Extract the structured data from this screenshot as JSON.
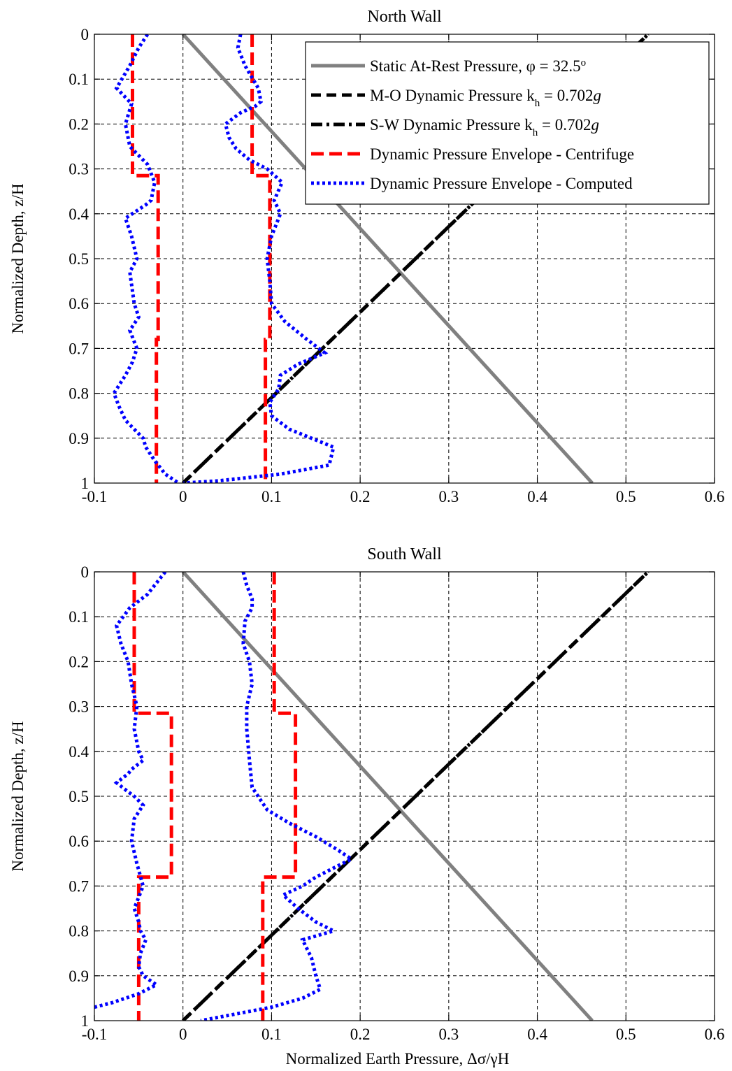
{
  "chart_data": [
    {
      "type": "line",
      "title": "North Wall",
      "xlabel": "",
      "ylabel": "Normalized Depth, z/H",
      "xlim": [
        -0.1,
        0.6
      ],
      "ylim": [
        0,
        1
      ],
      "y_reversed": true,
      "grid": true,
      "legend_position": "top-right",
      "xticks": [
        -0.1,
        0,
        0.1,
        0.2,
        0.3,
        0.4,
        0.5,
        0.6
      ],
      "xtick_labels": [
        "-0.1",
        "0",
        "0.1",
        "0.2",
        "0.3",
        "0.4",
        "0.5",
        "0.6"
      ],
      "yticks": [
        0,
        0.1,
        0.2,
        0.3,
        0.4,
        0.5,
        0.6,
        0.7,
        0.8,
        0.9,
        1
      ],
      "ytick_labels": [
        "0",
        "0.1",
        "0.2",
        "0.3",
        "0.4",
        "0.5",
        "0.6",
        "0.7",
        "0.8",
        "0.9",
        "1"
      ],
      "legend": [
        {
          "prefix": "Static At-Rest Pressure, ",
          "sym": "φ",
          "mid": " = 32.5",
          "sup": "o",
          "sub": "",
          "end": "",
          "italic": "",
          "style": "static"
        },
        {
          "prefix": "M-O Dynamic Pressure k",
          "sym": "",
          "mid": "",
          "sup": "",
          "sub": "h",
          "end": " = 0.702",
          "italic": "g",
          "style": "mo"
        },
        {
          "prefix": "S-W Dynamic Pressure k",
          "sym": "",
          "mid": "",
          "sup": "",
          "sub": "h",
          "end": " = 0.702",
          "italic": "g",
          "style": "sw"
        },
        {
          "prefix": "Dynamic Pressure Envelope - Centrifuge",
          "sym": "",
          "mid": "",
          "sup": "",
          "sub": "",
          "end": "",
          "italic": "",
          "style": "cent"
        },
        {
          "prefix": "Dynamic Pressure Envelope - Computed",
          "sym": "",
          "mid": "",
          "sup": "",
          "sub": "",
          "end": "",
          "italic": "",
          "style": "comp"
        }
      ],
      "series": [
        {
          "style": "static",
          "x": [
            0,
            0.462
          ],
          "y": [
            0,
            1
          ]
        },
        {
          "style": "mo",
          "x": [
            0,
            0.525
          ],
          "y": [
            1,
            0
          ]
        },
        {
          "style": "sw",
          "x": [
            0,
            0.525
          ],
          "y": [
            1,
            0
          ]
        },
        {
          "style": "cent",
          "x": [
            -0.057,
            -0.057,
            -0.028,
            -0.028,
            -0.03,
            -0.03
          ],
          "y": [
            0,
            0.315,
            0.315,
            0.68,
            0.68,
            1
          ]
        },
        {
          "style": "cent",
          "x": [
            0.078,
            0.078,
            0.098,
            0.098,
            0.093,
            0.093
          ],
          "y": [
            0,
            0.315,
            0.315,
            0.68,
            0.68,
            1
          ]
        },
        {
          "style": "comp",
          "x": [
            -0.04,
            -0.05,
            -0.06,
            -0.075,
            -0.058,
            -0.065,
            -0.06,
            -0.04,
            -0.032,
            -0.036,
            -0.042,
            -0.065,
            -0.058,
            -0.052,
            -0.06,
            -0.055,
            -0.05,
            -0.06,
            -0.052,
            -0.057,
            -0.065,
            -0.078,
            -0.072,
            -0.065,
            -0.055,
            -0.045,
            -0.042,
            -0.032,
            -0.02,
            -0.005
          ],
          "y": [
            0,
            0.03,
            0.07,
            0.12,
            0.155,
            0.2,
            0.25,
            0.29,
            0.33,
            0.37,
            0.38,
            0.41,
            0.45,
            0.5,
            0.53,
            0.6,
            0.63,
            0.66,
            0.7,
            0.73,
            0.76,
            0.8,
            0.83,
            0.86,
            0.88,
            0.9,
            0.92,
            0.95,
            0.98,
            1
          ]
        },
        {
          "style": "comp",
          "x": [
            0.065,
            0.062,
            0.07,
            0.085,
            0.088,
            0.082,
            0.065,
            0.048,
            0.052,
            0.06,
            0.075,
            0.095,
            0.112,
            0.103,
            0.11,
            0.1,
            0.095,
            0.098,
            0.1,
            0.115,
            0.14,
            0.16,
            0.13,
            0.11,
            0.108,
            0.098,
            0.1,
            0.12,
            0.145,
            0.17,
            0.165,
            0.11,
            0.04,
            0
          ],
          "y": [
            0,
            0.03,
            0.07,
            0.12,
            0.15,
            0.16,
            0.175,
            0.2,
            0.23,
            0.255,
            0.28,
            0.3,
            0.33,
            0.37,
            0.4,
            0.45,
            0.5,
            0.55,
            0.6,
            0.64,
            0.68,
            0.71,
            0.735,
            0.76,
            0.79,
            0.82,
            0.85,
            0.88,
            0.9,
            0.92,
            0.96,
            0.98,
            0.995,
            1
          ]
        }
      ]
    },
    {
      "type": "line",
      "title": "South Wall",
      "xlabel": "Normalized Earth Pressure, Δσ/γH",
      "ylabel": "Normalized Depth, z/H",
      "xlim": [
        -0.1,
        0.6
      ],
      "ylim": [
        0,
        1
      ],
      "y_reversed": true,
      "grid": true,
      "xticks": [
        -0.1,
        0,
        0.1,
        0.2,
        0.3,
        0.4,
        0.5,
        0.6
      ],
      "xtick_labels": [
        "-0.1",
        "0",
        "0.1",
        "0.2",
        "0.3",
        "0.4",
        "0.5",
        "0.6"
      ],
      "yticks": [
        0,
        0.1,
        0.2,
        0.3,
        0.4,
        0.5,
        0.6,
        0.7,
        0.8,
        0.9,
        1
      ],
      "ytick_labels": [
        "0",
        "0.1",
        "0.2",
        "0.3",
        "0.4",
        "0.5",
        "0.6",
        "0.7",
        "0.8",
        "0.9",
        "1"
      ],
      "series": [
        {
          "style": "static",
          "x": [
            0,
            0.462
          ],
          "y": [
            0,
            1
          ]
        },
        {
          "style": "mo",
          "x": [
            0,
            0.525
          ],
          "y": [
            1,
            0
          ]
        },
        {
          "style": "sw",
          "x": [
            0,
            0.525
          ],
          "y": [
            1,
            0
          ]
        },
        {
          "style": "cent",
          "x": [
            -0.055,
            -0.055,
            -0.013,
            -0.013,
            -0.05,
            -0.05
          ],
          "y": [
            0,
            0.315,
            0.315,
            0.68,
            0.68,
            1
          ]
        },
        {
          "style": "cent",
          "x": [
            0.103,
            0.103,
            0.127,
            0.127,
            0.09,
            0.09
          ],
          "y": [
            0,
            0.315,
            0.315,
            0.68,
            0.68,
            1
          ]
        },
        {
          "style": "comp",
          "x": [
            -0.02,
            -0.04,
            -0.06,
            -0.075,
            -0.07,
            -0.062,
            -0.058,
            -0.052,
            -0.055,
            -0.05,
            -0.045,
            -0.058,
            -0.062,
            -0.075,
            -0.062,
            -0.055,
            -0.045,
            -0.055,
            -0.058,
            -0.052,
            -0.045,
            -0.055,
            -0.05,
            -0.048,
            -0.042,
            -0.048,
            -0.05,
            -0.045,
            -0.03,
            -0.05,
            -0.08,
            -0.1
          ],
          "y": [
            0,
            0.05,
            0.08,
            0.12,
            0.16,
            0.2,
            0.25,
            0.3,
            0.35,
            0.4,
            0.42,
            0.44,
            0.45,
            0.47,
            0.49,
            0.5,
            0.52,
            0.55,
            0.6,
            0.65,
            0.7,
            0.75,
            0.78,
            0.8,
            0.82,
            0.85,
            0.88,
            0.9,
            0.92,
            0.94,
            0.96,
            0.97
          ]
        },
        {
          "style": "comp",
          "x": [
            0.068,
            0.072,
            0.078,
            0.078,
            0.07,
            0.068,
            0.075,
            0.078,
            0.072,
            0.072,
            0.075,
            0.078,
            0.095,
            0.12,
            0.15,
            0.175,
            0.19,
            0.17,
            0.15,
            0.135,
            0.113,
            0.13,
            0.15,
            0.17,
            0.135,
            0.145,
            0.15,
            0.155,
            0.135,
            0.1,
            0.06,
            0.02
          ],
          "y": [
            0,
            0.03,
            0.06,
            0.08,
            0.11,
            0.16,
            0.2,
            0.25,
            0.3,
            0.35,
            0.42,
            0.48,
            0.53,
            0.56,
            0.59,
            0.62,
            0.64,
            0.66,
            0.68,
            0.7,
            0.72,
            0.75,
            0.78,
            0.8,
            0.82,
            0.86,
            0.9,
            0.93,
            0.95,
            0.97,
            0.985,
            1
          ]
        }
      ]
    }
  ]
}
